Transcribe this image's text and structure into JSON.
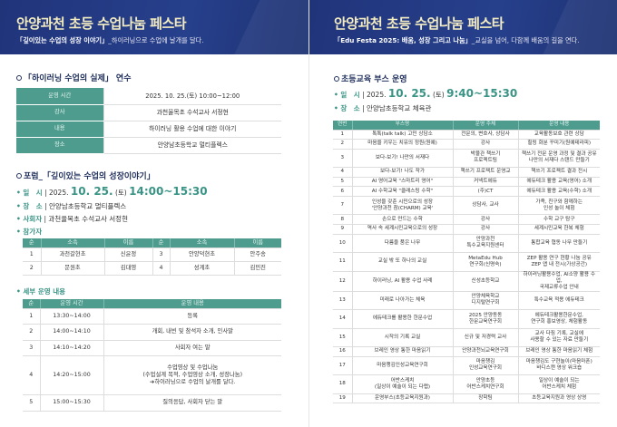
{
  "left": {
    "title": "안양과천 초등 수업나눔 페스타",
    "subtitle_bold": "「깊이있는 수업의 성장 이야기」",
    "subtitle_rest": "_하이러닝으로 수업에 날개를 달다.",
    "training": {
      "title": "「하이러닝 수업의 실제」 연수",
      "rows": [
        {
          "label": "운영 시간",
          "value": "2025. 10. 25.(토) 10:00~12:00"
        },
        {
          "label": "강사",
          "value": "과천율목초 수석교사 서정현"
        },
        {
          "label": "내용",
          "value": "하이러닝 활용 수업에 대한 이야기"
        },
        {
          "label": "장소",
          "value": "안양남초등학교 멀티플렉스"
        }
      ]
    },
    "forum": {
      "title": "포럼_「깊이있는 수업의 성장이야기」",
      "date_label": "일　시",
      "date_prefix": "2025.",
      "date_big": "10. 25.",
      "date_day": "(토)",
      "date_time": "14:00~15:30",
      "place_label": "장　소",
      "place": "안양남초등학교 멀티플렉스",
      "host_label": "사회자",
      "host": "과천율목초 수석교사 서정현",
      "participants_label": "참가자",
      "participants_headers": [
        "순",
        "소속",
        "이름",
        "순",
        "소속",
        "이름"
      ],
      "participants": [
        [
          "1",
          "과천갈현초",
          "신윤정",
          "3",
          "안양덕현초",
          "안주송"
        ],
        [
          "2",
          "문원초",
          "김대영",
          "4",
          "성계초",
          "김민진"
        ]
      ],
      "detail_label": "세부 운영 내용",
      "detail_headers": [
        "순",
        "운영 시간",
        "운영 내용"
      ],
      "detail": [
        [
          "1",
          "13:30~14:00",
          "등록"
        ],
        [
          "2",
          "14:00~14:10",
          "개회, 내빈 및 참석자 소개, 인사말"
        ],
        [
          "3",
          "14:10~14:20",
          "사회자 여는 말"
        ],
        [
          "4",
          "14:20~15:00",
          "수업영상 및 수업나눔\n(수업설계 목적, 수업영상 소개, 성장나눔)\n➔하이러닝으로 수업의 날개를 달다."
        ],
        [
          "5",
          "15:00~15:30",
          "질의응답, 사회자 닫는 말"
        ]
      ]
    }
  },
  "right": {
    "title": "안양과천 초등 수업나눔 페스타",
    "subtitle_bold": "「Edu Festa 2025: 배움, 성장 그리고 나눔」",
    "subtitle_rest": "_교실을 넘어, 다함께 배움의 길을 연다.",
    "booth": {
      "title": "초등교육 부스 운영",
      "date_label": "일　시",
      "date_prefix": "2025.",
      "date_big": "10. 25.",
      "date_day": "(토)",
      "date_time": "9:40~15:30",
      "place_label": "장　소",
      "place": "안양남초등학교 체육관",
      "headers": [
        "연번",
        "부스명",
        "운영 주체",
        "운영 내용"
      ],
      "rows": [
        [
          "1",
          "톡톡(talk talk) 고민 상담소",
          "전문의, 변호사, 상담사",
          "교육활동보호 관련 상담"
        ],
        [
          "2",
          "마음을 키우는 치유의 정원(원예)",
          "강사",
          "힐링 화분 꾸미기(원예테라피)"
        ],
        [
          "3",
          "보다-보기! 나만의 서재다",
          "박물관 책쓰기\n프로젝트팀",
          "책쓰기 전문 운영 과정 및 결과 공유\n나만의 서재다 스탠드 만들기"
        ],
        [
          "4",
          "보다-보기! 나도 작가",
          "책쓰기 프로젝트 운영교",
          "책쓰기 프로젝트 결과 전시"
        ],
        [
          "5",
          "AI 영어교육 \"스마트리 영어\"",
          "커넥트에듀",
          "에듀테크 활용 교육(영어) 소개"
        ],
        [
          "6",
          "AI 수학교육 \"클래스링 수학\"",
          "(주)CT",
          "에듀테크 활용 교육(수학) 소개"
        ],
        [
          "7",
          "인성을 갖춘 시민으로의 성장\n'안양과천 참(CHARM) 교육'",
          "상담사, 교사",
          "가족, 친구와 함께하는\n인성 놀이 체험"
        ],
        [
          "8",
          "손으로 만드는 수학",
          "강사",
          "수학 교구 탐구"
        ],
        [
          "9",
          "역사 속 세계시민교육으로의 성장",
          "강사",
          "세계시민교육 한복 체험"
        ],
        [
          "10",
          "다름을 품은 나무",
          "안양과천\n특수교육지원센터",
          "통합교육 협동 나무 만들기"
        ],
        [
          "11",
          "교실 밖 또 하나의 교실",
          "MetaEdu Hub\n연구회(신명숙)",
          "ZEP 활용 연구 현황 나눔 공유\nZEP 앱 내 전시(가상공간)"
        ],
        [
          "12",
          "하이러닝, AI 활용 수업 사례",
          "신성초등학교",
          "하이러닝활용수업, AI소양 활용 수업,\n국제교류수업 안내"
        ],
        [
          "13",
          "미래로 나아가는 체육",
          "안양체육학교\n디지털연구회",
          "특수교육 적용 에듀테크"
        ],
        [
          "14",
          "에듀테크를 활용한 한문수업",
          "2025 안양동동\n한문교육연구회",
          "에듀테크활용한문수업,\n연구회 홍보영상, 체험활동"
        ],
        [
          "15",
          "시작의 기록 교실",
          "신규 및 저경력 교사",
          "교사 다짐 기록, 교실에\n사용할 수 있는 자료 만들기"
        ],
        [
          "16",
          "브레인 영상 통한 마음읽기",
          "안양과천뇌교육연구회",
          "브레인 영상 통한 마음읽기 체험"
        ],
        [
          "17",
          "마음챙김인성교육연구회",
          "마음챙김\n인성교육연구회",
          "마음챙김도 구현놀이(마음마폰)\n바디스캔 영상 워크숍"
        ],
        [
          "18",
          "어반스케치\n(일상이 예술이 되는 다랩)",
          "안양초등\n어반스케치연구회",
          "일상이 예술이 되는\n어반스케치 체험"
        ],
        [
          "19",
          "운영부스(초등교육지원과)",
          "장학팀",
          "초등교육지원과 영상 상영"
        ]
      ]
    }
  },
  "colors": {
    "header_bg": "#20347a",
    "title": "#f3ecc0",
    "accent_teal": "#4d9c8e",
    "section": "#1f2f5c"
  }
}
